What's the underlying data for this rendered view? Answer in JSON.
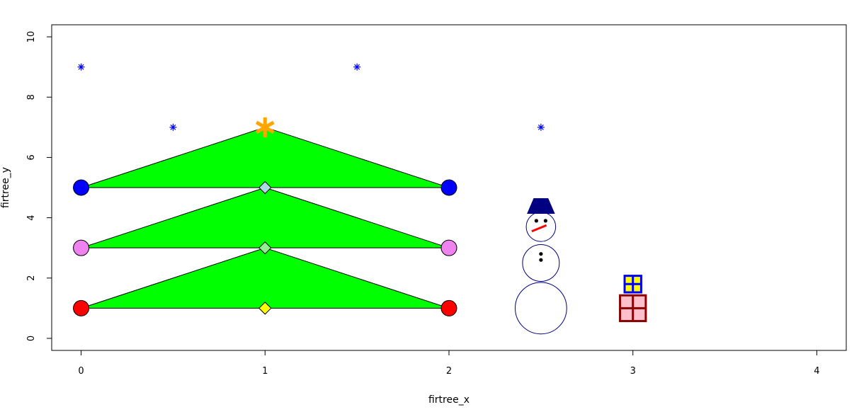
{
  "chart_data": {
    "type": "scatter",
    "xlabel": "firtree_x",
    "ylabel": "firtree_y",
    "xlim": [
      -0.16,
      4.16
    ],
    "ylim": [
      -0.4,
      10.4
    ],
    "x_ticks": [
      "0",
      "1",
      "2",
      "3",
      "4"
    ],
    "y_ticks": [
      "0",
      "2",
      "4",
      "6",
      "8",
      "10"
    ],
    "tree": {
      "color": "#00ff00",
      "layers": [
        {
          "points": [
            [
              0,
              1
            ],
            [
              1,
              3
            ],
            [
              2,
              1
            ]
          ]
        },
        {
          "points": [
            [
              0,
              3
            ],
            [
              1,
              5
            ],
            [
              2,
              3
            ]
          ]
        },
        {
          "points": [
            [
              0,
              5
            ],
            [
              1,
              7
            ],
            [
              2,
              5
            ]
          ]
        }
      ],
      "top_star": {
        "x": 1,
        "y": 7,
        "color": "#ffa500"
      }
    },
    "baubles": [
      {
        "x": 0,
        "y": 1,
        "color": "#ff0000"
      },
      {
        "x": 2,
        "y": 1,
        "color": "#ff0000"
      },
      {
        "x": 0,
        "y": 3,
        "color": "#ee82ee"
      },
      {
        "x": 2,
        "y": 3,
        "color": "#ee82ee"
      },
      {
        "x": 0,
        "y": 5,
        "color": "#0000ff"
      },
      {
        "x": 2,
        "y": 5,
        "color": "#0000ff"
      }
    ],
    "diamonds": [
      {
        "x": 1,
        "y": 1,
        "color": "#ffff00"
      },
      {
        "x": 1,
        "y": 3,
        "color": "#90ee90"
      },
      {
        "x": 1,
        "y": 5,
        "color": "#add8e6"
      }
    ],
    "snowflakes": {
      "color": "#0000ff",
      "points": [
        [
          0,
          9
        ],
        [
          0.5,
          7
        ],
        [
          1.5,
          9
        ],
        [
          2.5,
          7
        ]
      ]
    },
    "snowman": {
      "color": "#000080",
      "body": [
        {
          "x": 2.5,
          "y": 1,
          "r": 0.14
        },
        {
          "x": 2.5,
          "y": 2.5,
          "r": 0.1
        },
        {
          "x": 2.5,
          "y": 3.7,
          "r": 0.08
        }
      ],
      "hat": {
        "x": 2.5,
        "y": 4.4,
        "color": "#000080"
      },
      "eyes": [
        [
          2.475,
          3.9
        ],
        [
          2.525,
          3.9
        ]
      ],
      "buttons": [
        [
          2.5,
          2.8
        ],
        [
          2.5,
          2.6
        ]
      ],
      "nose": {
        "from": [
          2.45,
          3.55
        ],
        "to": [
          2.53,
          3.75
        ],
        "color": "#ff0000"
      }
    },
    "presents": [
      {
        "x": 3,
        "y": 1,
        "size": 0.07,
        "fill": "#ffc0cb",
        "ribbon": "#8b0000"
      },
      {
        "x": 3,
        "y": 1.8,
        "size": 0.045,
        "fill": "#ffff00",
        "ribbon": "#0000ff"
      }
    ]
  }
}
